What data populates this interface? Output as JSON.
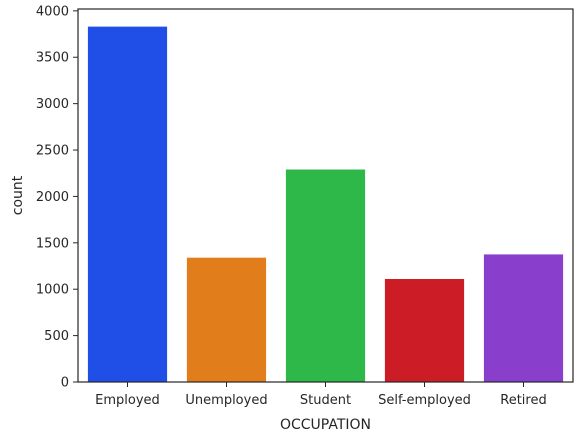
{
  "chart_data": {
    "type": "bar",
    "title": "",
    "xlabel": "OCCUPATION",
    "ylabel": "count",
    "categories": [
      "Employed",
      "Unemployed",
      "Student",
      "Self-employed",
      "Retired"
    ],
    "values": [
      3830,
      1340,
      2290,
      1110,
      1375
    ],
    "colors": [
      "#1f4fe6",
      "#e27d1c",
      "#2eb84a",
      "#cc1c25",
      "#8a3fcc"
    ],
    "yticks": [
      0,
      500,
      1000,
      1500,
      2000,
      2500,
      3000,
      3500,
      4000
    ],
    "ylim": [
      0,
      4020
    ],
    "grid": false,
    "legend": "none"
  }
}
